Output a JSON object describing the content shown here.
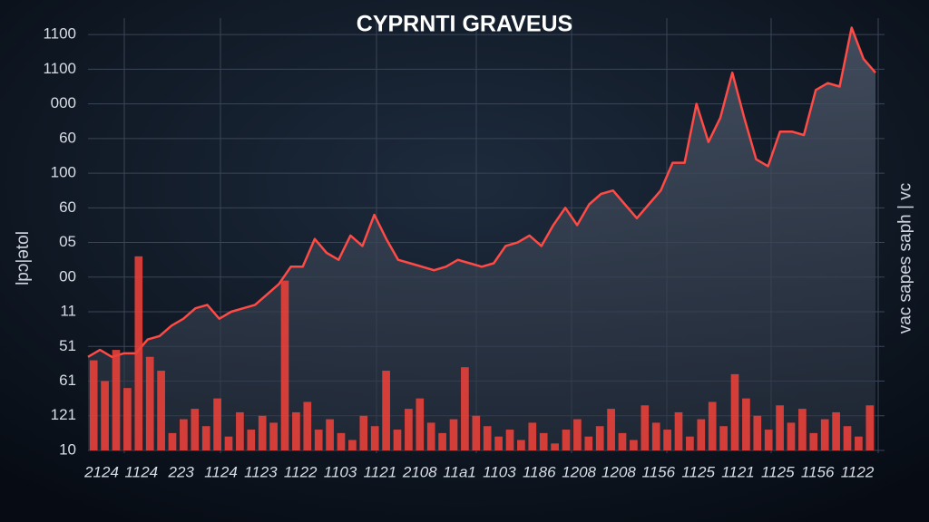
{
  "chart_data": {
    "type": "line-bar",
    "title": "CYPRNTI GRAVEUS",
    "y_axis_label": "lpɔ|ǝtol",
    "y2_axis_label": "ɔʌ | ɥdɐs sǝdɐs ɔɐʌ",
    "x_labels": [
      "2124",
      "1124",
      "223",
      "1124",
      "1123",
      "1122",
      "1103",
      "1121",
      "2108",
      "11a1",
      "1103",
      "1186",
      "1208",
      "1208",
      "1156",
      "1125",
      "1121",
      "1125",
      "1156",
      "1122"
    ],
    "ylim": [
      0,
      12.5
    ],
    "yticks": [
      {
        "value": 0,
        "label": "10"
      },
      {
        "value": 1,
        "label": "121"
      },
      {
        "value": 2,
        "label": "61"
      },
      {
        "value": 3,
        "label": "51"
      },
      {
        "value": 4,
        "label": "11"
      },
      {
        "value": 5,
        "label": "00"
      },
      {
        "value": 6,
        "label": "05"
      },
      {
        "value": 7,
        "label": "60"
      },
      {
        "value": 8,
        "label": "100"
      },
      {
        "value": 9,
        "label": "60"
      },
      {
        "value": 10,
        "label": "000"
      },
      {
        "value": 11,
        "label": "1100"
      },
      {
        "value": 12,
        "label": "1100"
      }
    ],
    "grid": true,
    "series": [
      {
        "kind": "line",
        "color": "#ff4a45",
        "values": [
          2.7,
          2.9,
          2.7,
          2.8,
          2.8,
          3.2,
          3.3,
          3.6,
          3.8,
          4.1,
          4.2,
          3.8,
          4.0,
          4.1,
          4.2,
          4.5,
          4.8,
          5.3,
          5.3,
          6.1,
          5.7,
          5.5,
          6.2,
          5.9,
          6.8,
          6.1,
          5.5,
          5.4,
          5.3,
          5.2,
          5.3,
          5.5,
          5.4,
          5.3,
          5.4,
          5.9,
          6.0,
          6.2,
          5.9,
          6.5,
          7.0,
          6.5,
          7.1,
          7.4,
          7.5,
          7.1,
          6.7,
          7.1,
          7.5,
          8.3,
          8.3,
          10.0,
          8.9,
          9.6,
          10.9,
          9.6,
          8.4,
          8.2,
          9.2,
          9.2,
          9.1,
          10.4,
          10.6,
          10.5,
          12.2,
          11.3,
          10.9
        ]
      },
      {
        "kind": "bar",
        "color": "#e8403a",
        "values": [
          2.6,
          2.0,
          2.9,
          1.8,
          5.6,
          2.7,
          2.3,
          0.5,
          0.9,
          1.2,
          0.7,
          1.5,
          0.4,
          1.1,
          0.6,
          1.0,
          0.8,
          4.9,
          1.1,
          1.4,
          0.6,
          0.9,
          0.5,
          0.3,
          1.0,
          0.7,
          2.3,
          0.6,
          1.2,
          1.5,
          0.8,
          0.5,
          0.9,
          2.4,
          1.0,
          0.7,
          0.4,
          0.6,
          0.3,
          0.8,
          0.5,
          0.2,
          0.6,
          0.9,
          0.4,
          0.7,
          1.2,
          0.5,
          0.3,
          1.3,
          0.8,
          0.6,
          1.1,
          0.4,
          0.9,
          1.4,
          0.7,
          2.2,
          1.5,
          1.0,
          0.6,
          1.3,
          0.8,
          1.2,
          0.5,
          0.9,
          1.1,
          0.7,
          0.4,
          1.3
        ]
      }
    ]
  }
}
